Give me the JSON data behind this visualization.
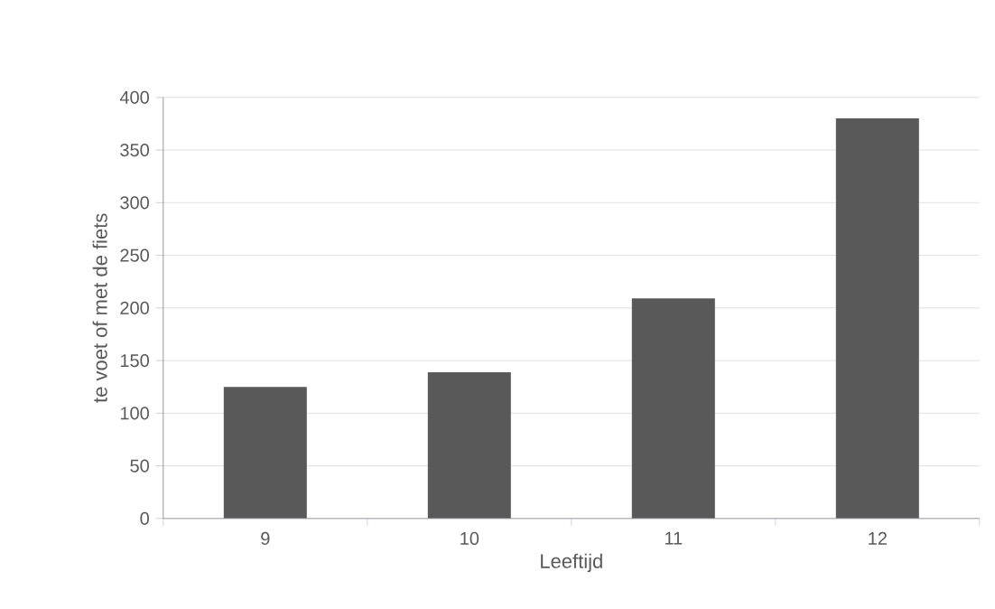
{
  "chart_data": {
    "type": "bar",
    "xlabel": "Leeftijd",
    "ylabel": "te voet of met de fiets",
    "categories": [
      "9",
      "10",
      "11",
      "12"
    ],
    "values": [
      125,
      139,
      209,
      380
    ],
    "color": "#595959",
    "ylim": [
      0,
      400
    ],
    "yticks": [
      0,
      50,
      100,
      150,
      200,
      250,
      300,
      350,
      400
    ],
    "grid": "y"
  }
}
